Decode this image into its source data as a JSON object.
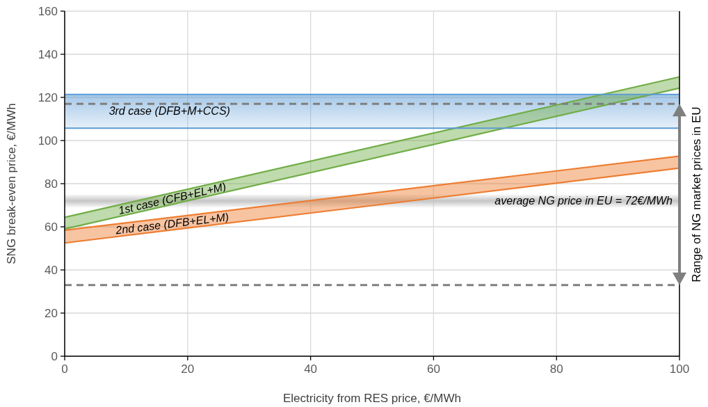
{
  "chart_data": {
    "type": "line",
    "xlabel": "Electricity from RES price, €/MWh",
    "ylabel": "SNG break-even price, €/MWh",
    "x": [
      0,
      100
    ],
    "xlim": [
      0,
      100
    ],
    "xticks": [
      0,
      20,
      40,
      60,
      80,
      100
    ],
    "ylim": [
      0,
      160
    ],
    "yticks": [
      0,
      20,
      40,
      60,
      80,
      100,
      120,
      140,
      160
    ],
    "grid": true,
    "legend": false,
    "marker": "none",
    "line_style": "solid",
    "series": [
      {
        "name": "1st case (CFB+EL+M)",
        "color": "#70ad47",
        "values": [
          64.4,
          129.5
        ],
        "upper": [
          64.4,
          129.5
        ],
        "lower": [
          59,
          124.3
        ]
      },
      {
        "color": "#70ad47",
        "values": [
          59,
          124.3
        ]
      },
      {
        "name": "2nd case (DFB+EL+M)",
        "color": "#ed7d31",
        "values": [
          58.4,
          92.8
        ],
        "upper": [
          58.4,
          92.8
        ],
        "lower": [
          52.5,
          87.2
        ]
      },
      {
        "color": "#ed7d31",
        "values": [
          52.5,
          87.2
        ]
      }
    ],
    "bands": [
      {
        "axis": "y",
        "from": 105.7,
        "to": 121.4,
        "label": "3rd case (DFB+M+CCS)",
        "color": "#5b9bd5"
      },
      {
        "axis": "y",
        "from": 69,
        "to": 75,
        "label": "average NG price in EU = 72€/MWh",
        "color": "#bfbfbf"
      }
    ],
    "ref_lines": [
      {
        "axis": "y",
        "value": 121.4,
        "color": "#5b9bd5",
        "line_style": "solid"
      },
      {
        "axis": "y",
        "value": 105.7,
        "color": "#5b9bd5",
        "line_style": "solid"
      },
      {
        "axis": "y",
        "value": 117,
        "color": "#7f7f7f",
        "line_style": "dashed"
      },
      {
        "axis": "y",
        "value": 33,
        "color": "#7f7f7f",
        "line_style": "dashed"
      }
    ],
    "annotations": [
      "Range of NG market prices in EU"
    ]
  }
}
